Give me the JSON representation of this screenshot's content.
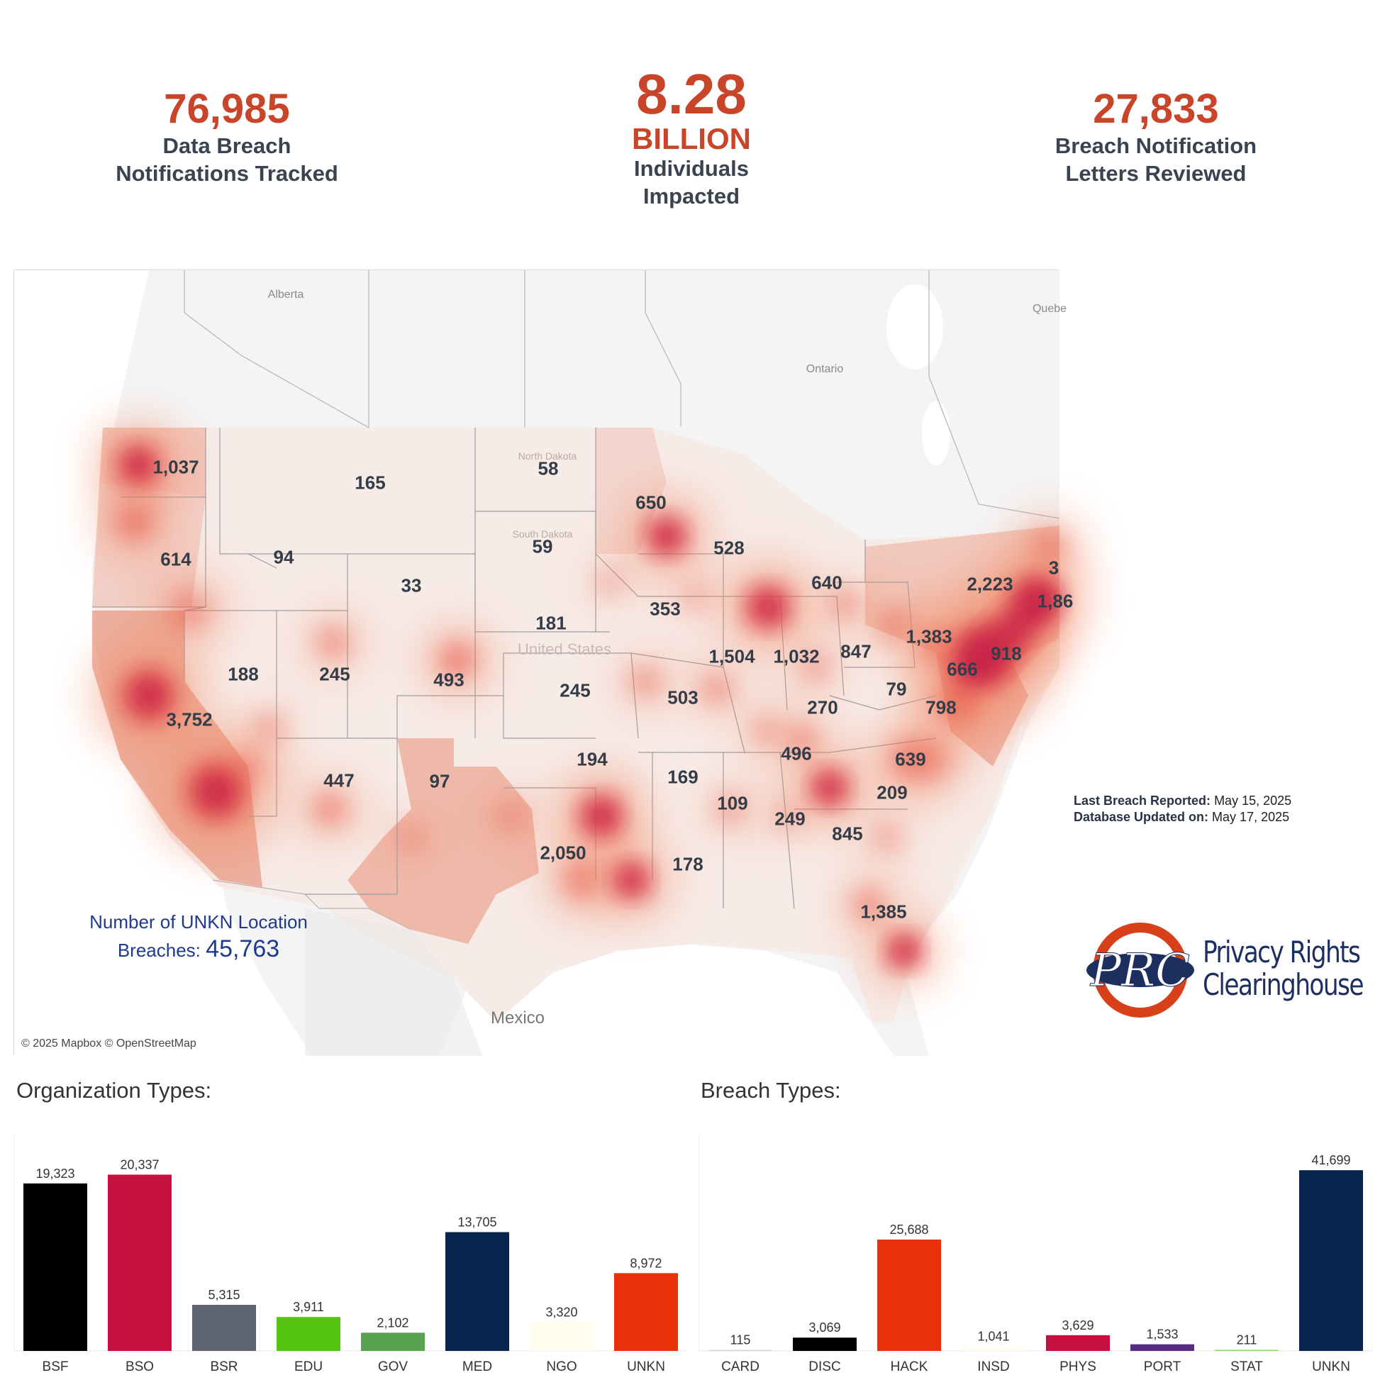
{
  "kpis": {
    "notifications": {
      "value": "76,985",
      "label1": "Data Breach",
      "label2": "Notifications Tracked"
    },
    "individuals": {
      "value": "8.28",
      "unit": "BILLION",
      "label1": "Individuals",
      "label2": "Impacted"
    },
    "letters": {
      "value": "27,833",
      "label1": "Breach Notification",
      "label2": "Letters Reviewed"
    }
  },
  "map": {
    "places": [
      {
        "name": "Alberta"
      },
      {
        "name": "Ontario"
      },
      {
        "name": "Quebe"
      },
      {
        "name": "Mexico"
      },
      {
        "name": "North Dakota"
      },
      {
        "name": "South Dakota"
      },
      {
        "name": "United States"
      }
    ],
    "state_values": [
      {
        "state": "WA",
        "value": "1,037"
      },
      {
        "state": "OR",
        "value": "614"
      },
      {
        "state": "ID",
        "value": "94"
      },
      {
        "state": "MT",
        "value": "165"
      },
      {
        "state": "WY",
        "value": "33"
      },
      {
        "state": "ND",
        "value": "58"
      },
      {
        "state": "SD",
        "value": "59"
      },
      {
        "state": "NE",
        "value": "181"
      },
      {
        "state": "MN",
        "value": "650"
      },
      {
        "state": "WI",
        "value": "528"
      },
      {
        "state": "MI",
        "value": "640"
      },
      {
        "state": "IA",
        "value": "353"
      },
      {
        "state": "IL",
        "value": "1,504"
      },
      {
        "state": "IN",
        "value": "1,032"
      },
      {
        "state": "OH",
        "value": "847"
      },
      {
        "state": "PA",
        "value": "1,383"
      },
      {
        "state": "NY",
        "value": "2,223"
      },
      {
        "state": "MA",
        "value": "1,86"
      },
      {
        "state": "NH",
        "value": "3"
      },
      {
        "state": "NJ",
        "value": "918"
      },
      {
        "state": "MD",
        "value": "666"
      },
      {
        "state": "WV",
        "value": "79"
      },
      {
        "state": "VA",
        "value": "798"
      },
      {
        "state": "NV",
        "value": "188"
      },
      {
        "state": "UT",
        "value": "245"
      },
      {
        "state": "CO",
        "value": "493"
      },
      {
        "state": "KS",
        "value": "245"
      },
      {
        "state": "MO",
        "value": "503"
      },
      {
        "state": "KY",
        "value": "270"
      },
      {
        "state": "CA",
        "value": "3,752"
      },
      {
        "state": "AZ",
        "value": "447"
      },
      {
        "state": "NM",
        "value": "97"
      },
      {
        "state": "OK",
        "value": "194"
      },
      {
        "state": "AR",
        "value": "169"
      },
      {
        "state": "TN",
        "value": "496"
      },
      {
        "state": "NC",
        "value": "639"
      },
      {
        "state": "SC",
        "value": "209"
      },
      {
        "state": "MS",
        "value": "109"
      },
      {
        "state": "AL",
        "value": "249"
      },
      {
        "state": "GA",
        "value": "845"
      },
      {
        "state": "TX",
        "value": "2,050"
      },
      {
        "state": "LA",
        "value": "178"
      },
      {
        "state": "FL",
        "value": "1,385"
      }
    ],
    "copyright": "© 2025 Mapbox © OpenStreetMap",
    "unkn_label1": "Number of UNKN Location",
    "unkn_label2": "Breaches:",
    "unkn_value": "45,763",
    "heat_color": "#e8574a",
    "hot_color": "#c8204a"
  },
  "dates": {
    "last_label": "Last Breach Reported:",
    "last_value": "May 15, 2025",
    "updated_label": "Database Updated on:",
    "updated_value": "May 17, 2025"
  },
  "logo": {
    "monogram": "PRC",
    "line1": "Privacy Rights",
    "line2": "Clearinghouse",
    "ring_color": "#d8401a",
    "navy": "#1d2f5e"
  },
  "org_chart": {
    "title": "Organization Types:",
    "chart_data": {
      "type": "bar",
      "categories": [
        "BSF",
        "BSO",
        "BSR",
        "EDU",
        "GOV",
        "MED",
        "NGO",
        "UNKN"
      ],
      "values": [
        19323,
        20337,
        5315,
        3911,
        2102,
        13705,
        3320,
        8972
      ],
      "labels": [
        "19,323",
        "20,337",
        "5,315",
        "3,911",
        "2,102",
        "13,705",
        "3,320",
        "8,972"
      ],
      "colors": [
        "#000000",
        "#c4103f",
        "#5a6570",
        "#55c511",
        "#56a452",
        "#082550",
        "#fffdf0",
        "#e83108"
      ],
      "ylim": [
        0,
        22500
      ]
    }
  },
  "breach_chart": {
    "title": "Breach Types:",
    "chart_data": {
      "type": "bar",
      "categories": [
        "CARD",
        "DISC",
        "HACK",
        "INSD",
        "PHYS",
        "PORT",
        "STAT",
        "UNKN"
      ],
      "values": [
        115,
        3069,
        25688,
        1041,
        3629,
        1533,
        211,
        41699
      ],
      "labels": [
        "115",
        "3,069",
        "25,688",
        "1,041",
        "3,629",
        "1,533",
        "211",
        "41,699"
      ],
      "colors": [
        "#cfd8dc",
        "#000000",
        "#e83108",
        "#fffdf0",
        "#c4103f",
        "#5a2a87",
        "#8fd45e",
        "#082550"
      ],
      "ylim": [
        0,
        45000
      ]
    }
  }
}
